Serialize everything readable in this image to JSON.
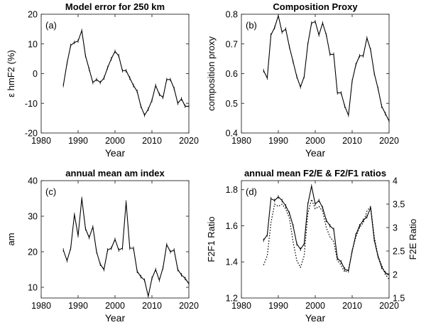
{
  "chart_data": [
    {
      "type": "line",
      "panel_label": "(a)",
      "title": "Model error for 250 km",
      "xlabel": "Year",
      "ylabel": "ε hmF2 (%)",
      "xlim": [
        1980,
        2020
      ],
      "ylim": [
        -20,
        20
      ],
      "xticks": [
        "1980",
        "1990",
        "2000",
        "2010",
        "2020"
      ],
      "yticks": [
        "-20",
        "-10",
        "0",
        "10",
        "20"
      ],
      "series": [
        {
          "x": [
            1986,
            1987,
            1988,
            1989,
            1990,
            1991,
            1992,
            1993,
            1994,
            1995,
            1996,
            1997,
            1998,
            1999,
            2000,
            2001,
            2002,
            2003,
            2004,
            2005,
            2006,
            2007,
            2008,
            2009,
            2010,
            2011,
            2012,
            2013,
            2014,
            2015,
            2016,
            2017,
            2018,
            2019,
            2020
          ],
          "values": [
            -4,
            3.5,
            9.5,
            10.5,
            11,
            14.5,
            6,
            1.5,
            -3,
            -2,
            -3,
            -1.5,
            2,
            5,
            7.5,
            6,
            1,
            1,
            -1.5,
            -4,
            -6,
            -11,
            -14,
            -12,
            -9,
            -4,
            -7,
            -8,
            -2,
            -2,
            -5,
            -10,
            -8.5,
            -11,
            -11
          ],
          "color": "#000000",
          "style": "solid"
        }
      ]
    },
    {
      "type": "line",
      "panel_label": "(b)",
      "title": "Composition Proxy",
      "xlabel": "Year",
      "ylabel": "composition proxy",
      "xlim": [
        1980,
        2020
      ],
      "ylim": [
        0.4,
        0.8
      ],
      "xticks": [
        "1980",
        "1990",
        "2000",
        "2010",
        "2020"
      ],
      "yticks": [
        "0.4",
        "0.5",
        "0.6",
        "0.7",
        "0.8"
      ],
      "series": [
        {
          "x": [
            1986,
            1987,
            1988,
            1989,
            1990,
            1991,
            1992,
            1993,
            1994,
            1995,
            1996,
            1997,
            1998,
            1999,
            2000,
            2001,
            2002,
            2003,
            2004,
            2005,
            2006,
            2007,
            2008,
            2009,
            2010,
            2011,
            2012,
            2013,
            2014,
            2015,
            2016,
            2017,
            2018,
            2019,
            2020
          ],
          "values": [
            0.61,
            0.585,
            0.73,
            0.755,
            0.795,
            0.74,
            0.75,
            0.69,
            0.64,
            0.59,
            0.555,
            0.59,
            0.7,
            0.77,
            0.775,
            0.73,
            0.77,
            0.73,
            0.665,
            0.665,
            0.535,
            0.535,
            0.49,
            0.46,
            0.575,
            0.63,
            0.66,
            0.66,
            0.72,
            0.68,
            0.6,
            0.55,
            0.49,
            0.465,
            0.44
          ],
          "color": "#000000",
          "style": "solid"
        }
      ]
    },
    {
      "type": "line",
      "panel_label": "(c)",
      "title": "annual mean am index",
      "xlabel": "Year",
      "ylabel": "am",
      "xlim": [
        1980,
        2020
      ],
      "ylim": [
        7,
        40
      ],
      "xticks": [
        "1980",
        "1990",
        "2000",
        "2010",
        "2020"
      ],
      "yticks": [
        "10",
        "20",
        "30",
        "40"
      ],
      "series": [
        {
          "x": [
            1986,
            1987,
            1988,
            1989,
            1990,
            1991,
            1992,
            1993,
            1994,
            1995,
            1996,
            1997,
            1998,
            1999,
            2000,
            2001,
            2002,
            2003,
            2004,
            2005,
            2006,
            2007,
            2008,
            2009,
            2010,
            2011,
            2012,
            2013,
            2014,
            2015,
            2016,
            2017,
            2018,
            2019,
            2020
          ],
          "values": [
            20.5,
            17.5,
            21,
            30.5,
            24.5,
            35,
            26.5,
            24,
            27,
            20,
            16.5,
            15,
            20.5,
            21,
            23.5,
            20.5,
            21,
            34,
            21,
            21,
            14.5,
            13,
            12,
            7.5,
            12.5,
            15,
            12,
            15.5,
            22,
            20,
            20.5,
            15,
            13.5,
            12.5,
            11
          ],
          "color": "#000000",
          "style": "solid"
        }
      ]
    },
    {
      "type": "line",
      "panel_label": "(d)",
      "title": "annual mean F2/E & F2/F1 ratios",
      "xlabel": "Year",
      "ylabel": "F2F1 Ratio",
      "ylabel_right": "F2E Ratio",
      "xlim": [
        1980,
        2020
      ],
      "ylim": [
        1.2,
        1.85
      ],
      "ylim_right": [
        1.5,
        4
      ],
      "xticks": [
        "1980",
        "1990",
        "2000",
        "2010",
        "2020"
      ],
      "yticks": [
        "1.2",
        "1.4",
        "1.6",
        "1.8"
      ],
      "yticks_right": [
        "1.5",
        "2",
        "2.5",
        "3",
        "3.5",
        "4"
      ],
      "series": [
        {
          "axis": "left",
          "x": [
            1986,
            1987,
            1988,
            1989,
            1990,
            1991,
            1992,
            1993,
            1994,
            1995,
            1996,
            1997,
            1998,
            1999,
            2000,
            2001,
            2002,
            2003,
            2004,
            2005,
            2006,
            2007,
            2008,
            2009,
            2010,
            2011,
            2012,
            2013,
            2014,
            2015,
            2016,
            2017,
            2018,
            2019,
            2020
          ],
          "values": [
            1.52,
            1.55,
            1.75,
            1.74,
            1.76,
            1.74,
            1.71,
            1.67,
            1.6,
            1.5,
            1.47,
            1.5,
            1.72,
            1.82,
            1.72,
            1.74,
            1.7,
            1.63,
            1.6,
            1.58,
            1.42,
            1.4,
            1.36,
            1.35,
            1.46,
            1.55,
            1.6,
            1.63,
            1.65,
            1.7,
            1.52,
            1.43,
            1.37,
            1.34,
            1.33
          ],
          "color": "#000000",
          "style": "solid"
        },
        {
          "axis": "right",
          "x": [
            1986,
            1987,
            1988,
            1989,
            1990,
            1991,
            1992,
            1993,
            1994,
            1995,
            1996,
            1997,
            1998,
            1999,
            2000,
            2001,
            2002,
            2003,
            2004,
            2005,
            2006,
            2007,
            2008,
            2009,
            2010,
            2011,
            2012,
            2013,
            2014,
            2015,
            2016,
            2017,
            2018,
            2019,
            2020
          ],
          "values": [
            2.2,
            2.4,
            3.1,
            3.5,
            3.45,
            3.5,
            3.4,
            3.2,
            2.7,
            2.3,
            2.15,
            2.4,
            3.3,
            3.6,
            3.4,
            3.45,
            3.35,
            3.0,
            2.8,
            2.7,
            2.3,
            2.2,
            2.05,
            2.1,
            2.5,
            2.8,
            3.0,
            3.1,
            3.35,
            3.45,
            2.8,
            2.4,
            2.2,
            2.0,
            1.9
          ],
          "color": "#000000",
          "style": "dotted"
        }
      ]
    }
  ]
}
